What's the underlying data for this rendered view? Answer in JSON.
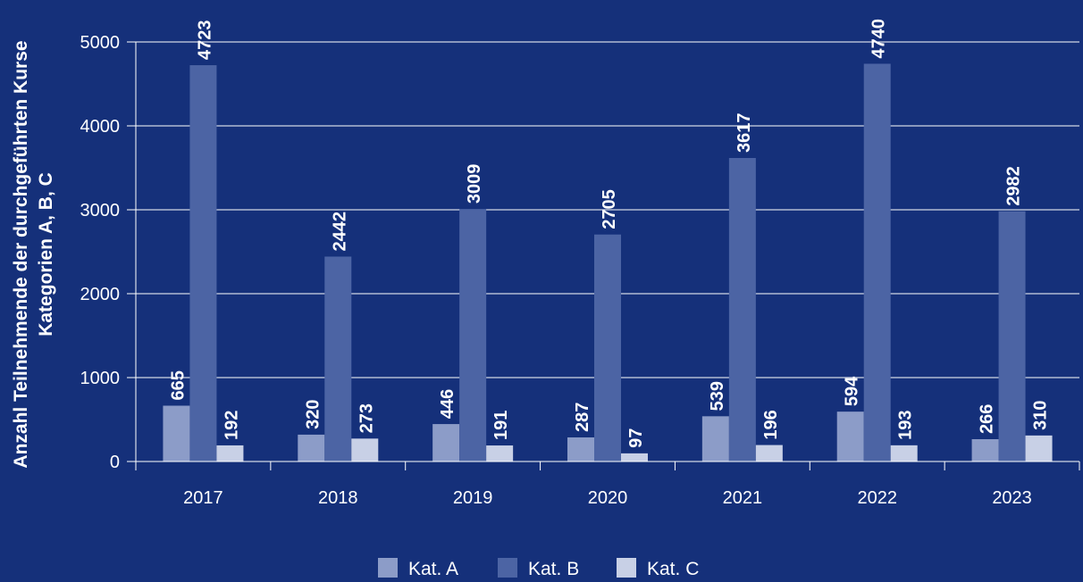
{
  "chart_data": {
    "type": "bar",
    "ylabel_lines": [
      "Anzahl Teilnehmende der durchgeführten Kurse",
      "Kategorien A, B, C"
    ],
    "categories": [
      "2017",
      "2018",
      "2019",
      "2020",
      "2021",
      "2022",
      "2023"
    ],
    "series": [
      {
        "name": "Kat. A",
        "color": "#8c9cc8",
        "values": [
          665,
          320,
          446,
          287,
          539,
          594,
          266
        ]
      },
      {
        "name": "Kat. B",
        "color": "#4c64a4",
        "values": [
          4723,
          2442,
          3009,
          2705,
          3617,
          4740,
          2982
        ]
      },
      {
        "name": "Kat. C",
        "color": "#c8d0e6",
        "values": [
          192,
          273,
          191,
          97,
          196,
          193,
          310
        ]
      }
    ],
    "ylim": [
      0,
      5000
    ],
    "yticks": [
      0,
      1000,
      2000,
      3000,
      4000,
      5000
    ],
    "grid": true,
    "legend_position": "bottom-center",
    "data_labels": true,
    "colors": {
      "background": "#15307a",
      "text": "#ffffff",
      "grid": "#ffffff"
    }
  }
}
